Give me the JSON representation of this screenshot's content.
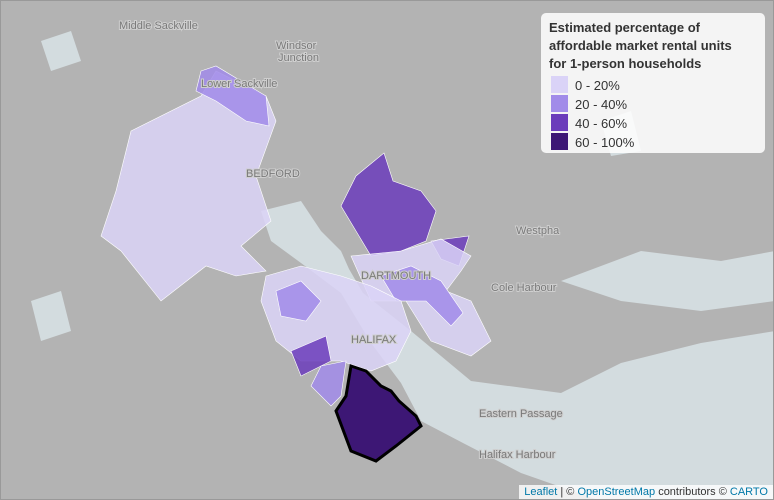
{
  "legend": {
    "title": [
      "Estimated percentage of",
      "affordable market rental units",
      "for 1-person households"
    ],
    "items": [
      {
        "label": "0 - 20%",
        "color": "#dad3f7"
      },
      {
        "label": "20 - 40%",
        "color": "#a18be9"
      },
      {
        "label": "40 - 60%",
        "color": "#6b3cbb"
      },
      {
        "label": "60 - 100%",
        "color": "#3d1775"
      }
    ]
  },
  "places": [
    "Middle Sackville",
    "Windsor",
    "Junction",
    "Lower Sackville",
    "BEDFORD",
    "DARTMOUTH",
    "Westpha",
    "Cole Harbour",
    "HALIFAX",
    "Eastern Passage",
    "Halifax Harbour"
  ],
  "attribution": {
    "leaflet": "Leaflet",
    "sep": "| ©",
    "osm": "OpenStreetMap",
    "contributors": "contributors ©",
    "carto": "CARTO"
  }
}
